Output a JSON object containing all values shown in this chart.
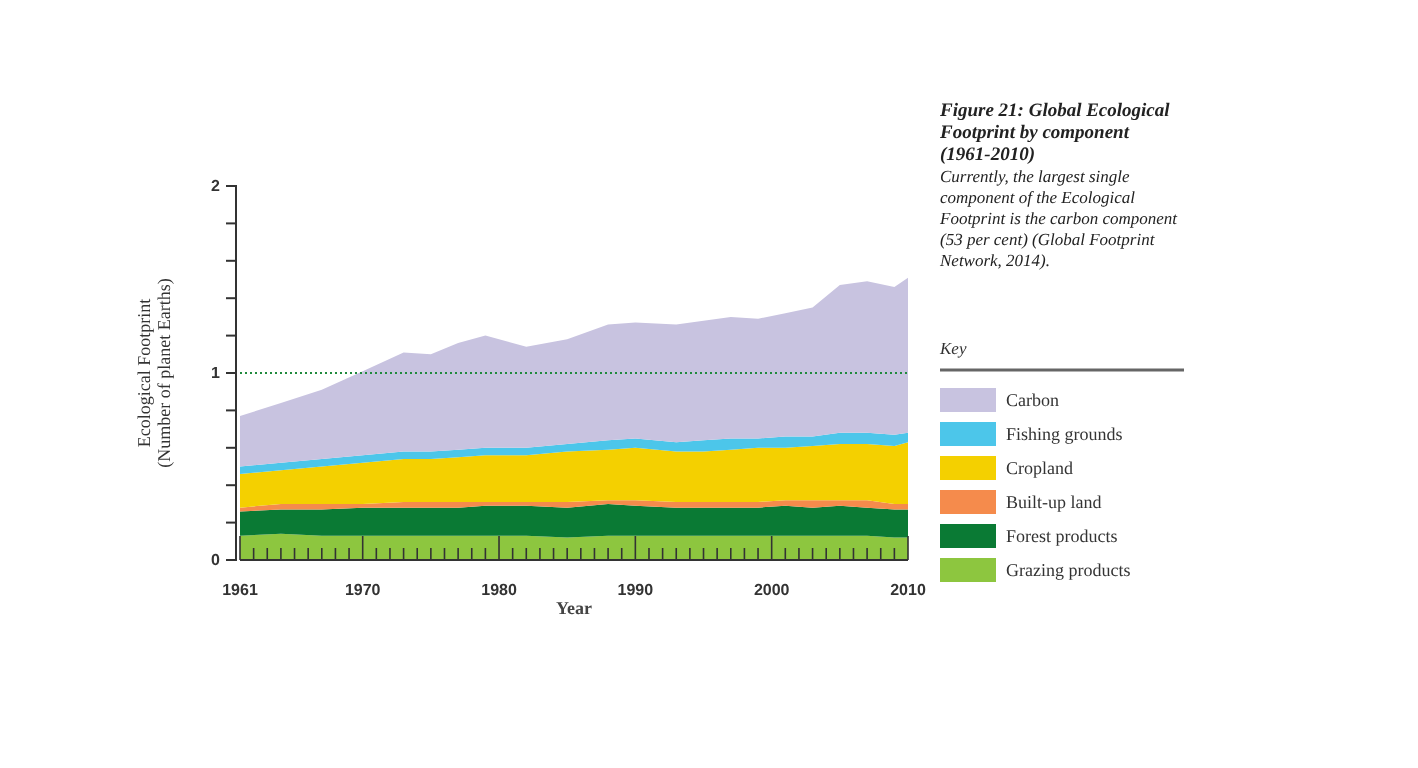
{
  "chart_data": {
    "type": "area",
    "stacked": true,
    "title": "Figure 21: Global Ecological Footprint by component (1961-2010)",
    "subtitle": "Currently, the largest single component of the Ecological Footprint is the carbon component (53 per cent) (Global Footprint Network, 2014).",
    "xlabel": "Year",
    "ylabel": "Ecological Footprint\n(Number of planet Earths)",
    "legend_title": "Key",
    "x": [
      1961,
      1964,
      1967,
      1970,
      1973,
      1975,
      1977,
      1979,
      1982,
      1985,
      1988,
      1990,
      1993,
      1995,
      1997,
      1999,
      2001,
      2003,
      2005,
      2007,
      2009,
      2010
    ],
    "series": [
      {
        "name": "Grazing products",
        "color": "#8dc63f",
        "values": [
          0.13,
          0.14,
          0.13,
          0.13,
          0.13,
          0.13,
          0.13,
          0.13,
          0.13,
          0.12,
          0.13,
          0.13,
          0.13,
          0.13,
          0.13,
          0.13,
          0.13,
          0.13,
          0.13,
          0.13,
          0.12,
          0.12
        ]
      },
      {
        "name": "Forest products",
        "color": "#0a7a34",
        "values": [
          0.13,
          0.13,
          0.14,
          0.15,
          0.15,
          0.15,
          0.15,
          0.16,
          0.16,
          0.16,
          0.17,
          0.16,
          0.15,
          0.15,
          0.15,
          0.15,
          0.16,
          0.15,
          0.16,
          0.15,
          0.15,
          0.15
        ]
      },
      {
        "name": "Built-up land",
        "color": "#f58b4c",
        "values": [
          0.02,
          0.03,
          0.03,
          0.02,
          0.03,
          0.03,
          0.03,
          0.02,
          0.02,
          0.03,
          0.02,
          0.03,
          0.03,
          0.03,
          0.03,
          0.03,
          0.03,
          0.04,
          0.03,
          0.04,
          0.03,
          0.03
        ]
      },
      {
        "name": "Cropland",
        "color": "#f4d000",
        "values": [
          0.18,
          0.18,
          0.2,
          0.22,
          0.23,
          0.23,
          0.24,
          0.25,
          0.25,
          0.27,
          0.27,
          0.28,
          0.27,
          0.27,
          0.28,
          0.29,
          0.28,
          0.29,
          0.3,
          0.3,
          0.31,
          0.33
        ]
      },
      {
        "name": "Fishing grounds",
        "color": "#4cc6ea",
        "values": [
          0.04,
          0.04,
          0.04,
          0.04,
          0.04,
          0.04,
          0.04,
          0.04,
          0.04,
          0.04,
          0.05,
          0.05,
          0.05,
          0.06,
          0.06,
          0.05,
          0.06,
          0.05,
          0.06,
          0.06,
          0.06,
          0.05
        ]
      },
      {
        "name": "Carbon",
        "color": "#c8c3e0",
        "values": [
          0.27,
          0.32,
          0.37,
          0.45,
          0.53,
          0.52,
          0.57,
          0.6,
          0.54,
          0.56,
          0.62,
          0.62,
          0.63,
          0.64,
          0.65,
          0.64,
          0.66,
          0.69,
          0.79,
          0.81,
          0.79,
          0.83
        ]
      }
    ],
    "xlim": [
      1961,
      2010
    ],
    "xticks": [
      1961,
      {
        "value": 1962,
        "label": null
      },
      {
        "value": 1963,
        "label": null
      },
      {
        "value": 1964,
        "label": null
      },
      {
        "value": 1965,
        "label": null
      },
      {
        "value": 1966,
        "label": null
      },
      {
        "value": 1967,
        "label": null
      },
      {
        "value": 1968,
        "label": null
      },
      {
        "value": 1969,
        "label": null
      },
      1970,
      {
        "value": 1971,
        "label": null
      },
      {
        "value": 1972,
        "label": null
      },
      {
        "value": 1973,
        "label": null
      },
      {
        "value": 1974,
        "label": null
      },
      {
        "value": 1975,
        "label": null
      },
      {
        "value": 1976,
        "label": null
      },
      {
        "value": 1977,
        "label": null
      },
      {
        "value": 1978,
        "label": null
      },
      {
        "value": 1979,
        "label": null
      },
      1980,
      {
        "value": 1981,
        "label": null
      },
      {
        "value": 1982,
        "label": null
      },
      {
        "value": 1983,
        "label": null
      },
      {
        "value": 1984,
        "label": null
      },
      {
        "value": 1985,
        "label": null
      },
      {
        "value": 1986,
        "label": null
      },
      {
        "value": 1987,
        "label": null
      },
      {
        "value": 1988,
        "label": null
      },
      {
        "value": 1989,
        "label": null
      },
      1990,
      {
        "value": 1991,
        "label": null
      },
      {
        "value": 1992,
        "label": null
      },
      {
        "value": 1993,
        "label": null
      },
      {
        "value": 1994,
        "label": null
      },
      {
        "value": 1995,
        "label": null
      },
      {
        "value": 1996,
        "label": null
      },
      {
        "value": 1997,
        "label": null
      },
      {
        "value": 1998,
        "label": null
      },
      {
        "value": 1999,
        "label": null
      },
      2000,
      {
        "value": 2001,
        "label": null
      },
      {
        "value": 2002,
        "label": null
      },
      {
        "value": 2003,
        "label": null
      },
      {
        "value": 2004,
        "label": null
      },
      {
        "value": 2005,
        "label": null
      },
      {
        "value": 2006,
        "label": null
      },
      {
        "value": 2007,
        "label": null
      },
      {
        "value": 2008,
        "label": null
      },
      {
        "value": 2009,
        "label": null
      },
      2010
    ],
    "ylim": [
      0,
      2
    ],
    "yticks": [
      0,
      {
        "value": 0.2,
        "label": null
      },
      {
        "value": 0.4,
        "label": null
      },
      {
        "value": 0.6,
        "label": null
      },
      {
        "value": 0.8,
        "label": null
      },
      1,
      {
        "value": 1.2,
        "label": null
      },
      {
        "value": 1.4,
        "label": null
      },
      {
        "value": 1.6,
        "label": null
      },
      {
        "value": 1.8,
        "label": null
      },
      2
    ],
    "ref_lines": [
      {
        "axis": "y",
        "value": 1,
        "color": "#1f8a3c",
        "line_style": "dotted"
      }
    ],
    "legend": "right",
    "grid": false
  }
}
